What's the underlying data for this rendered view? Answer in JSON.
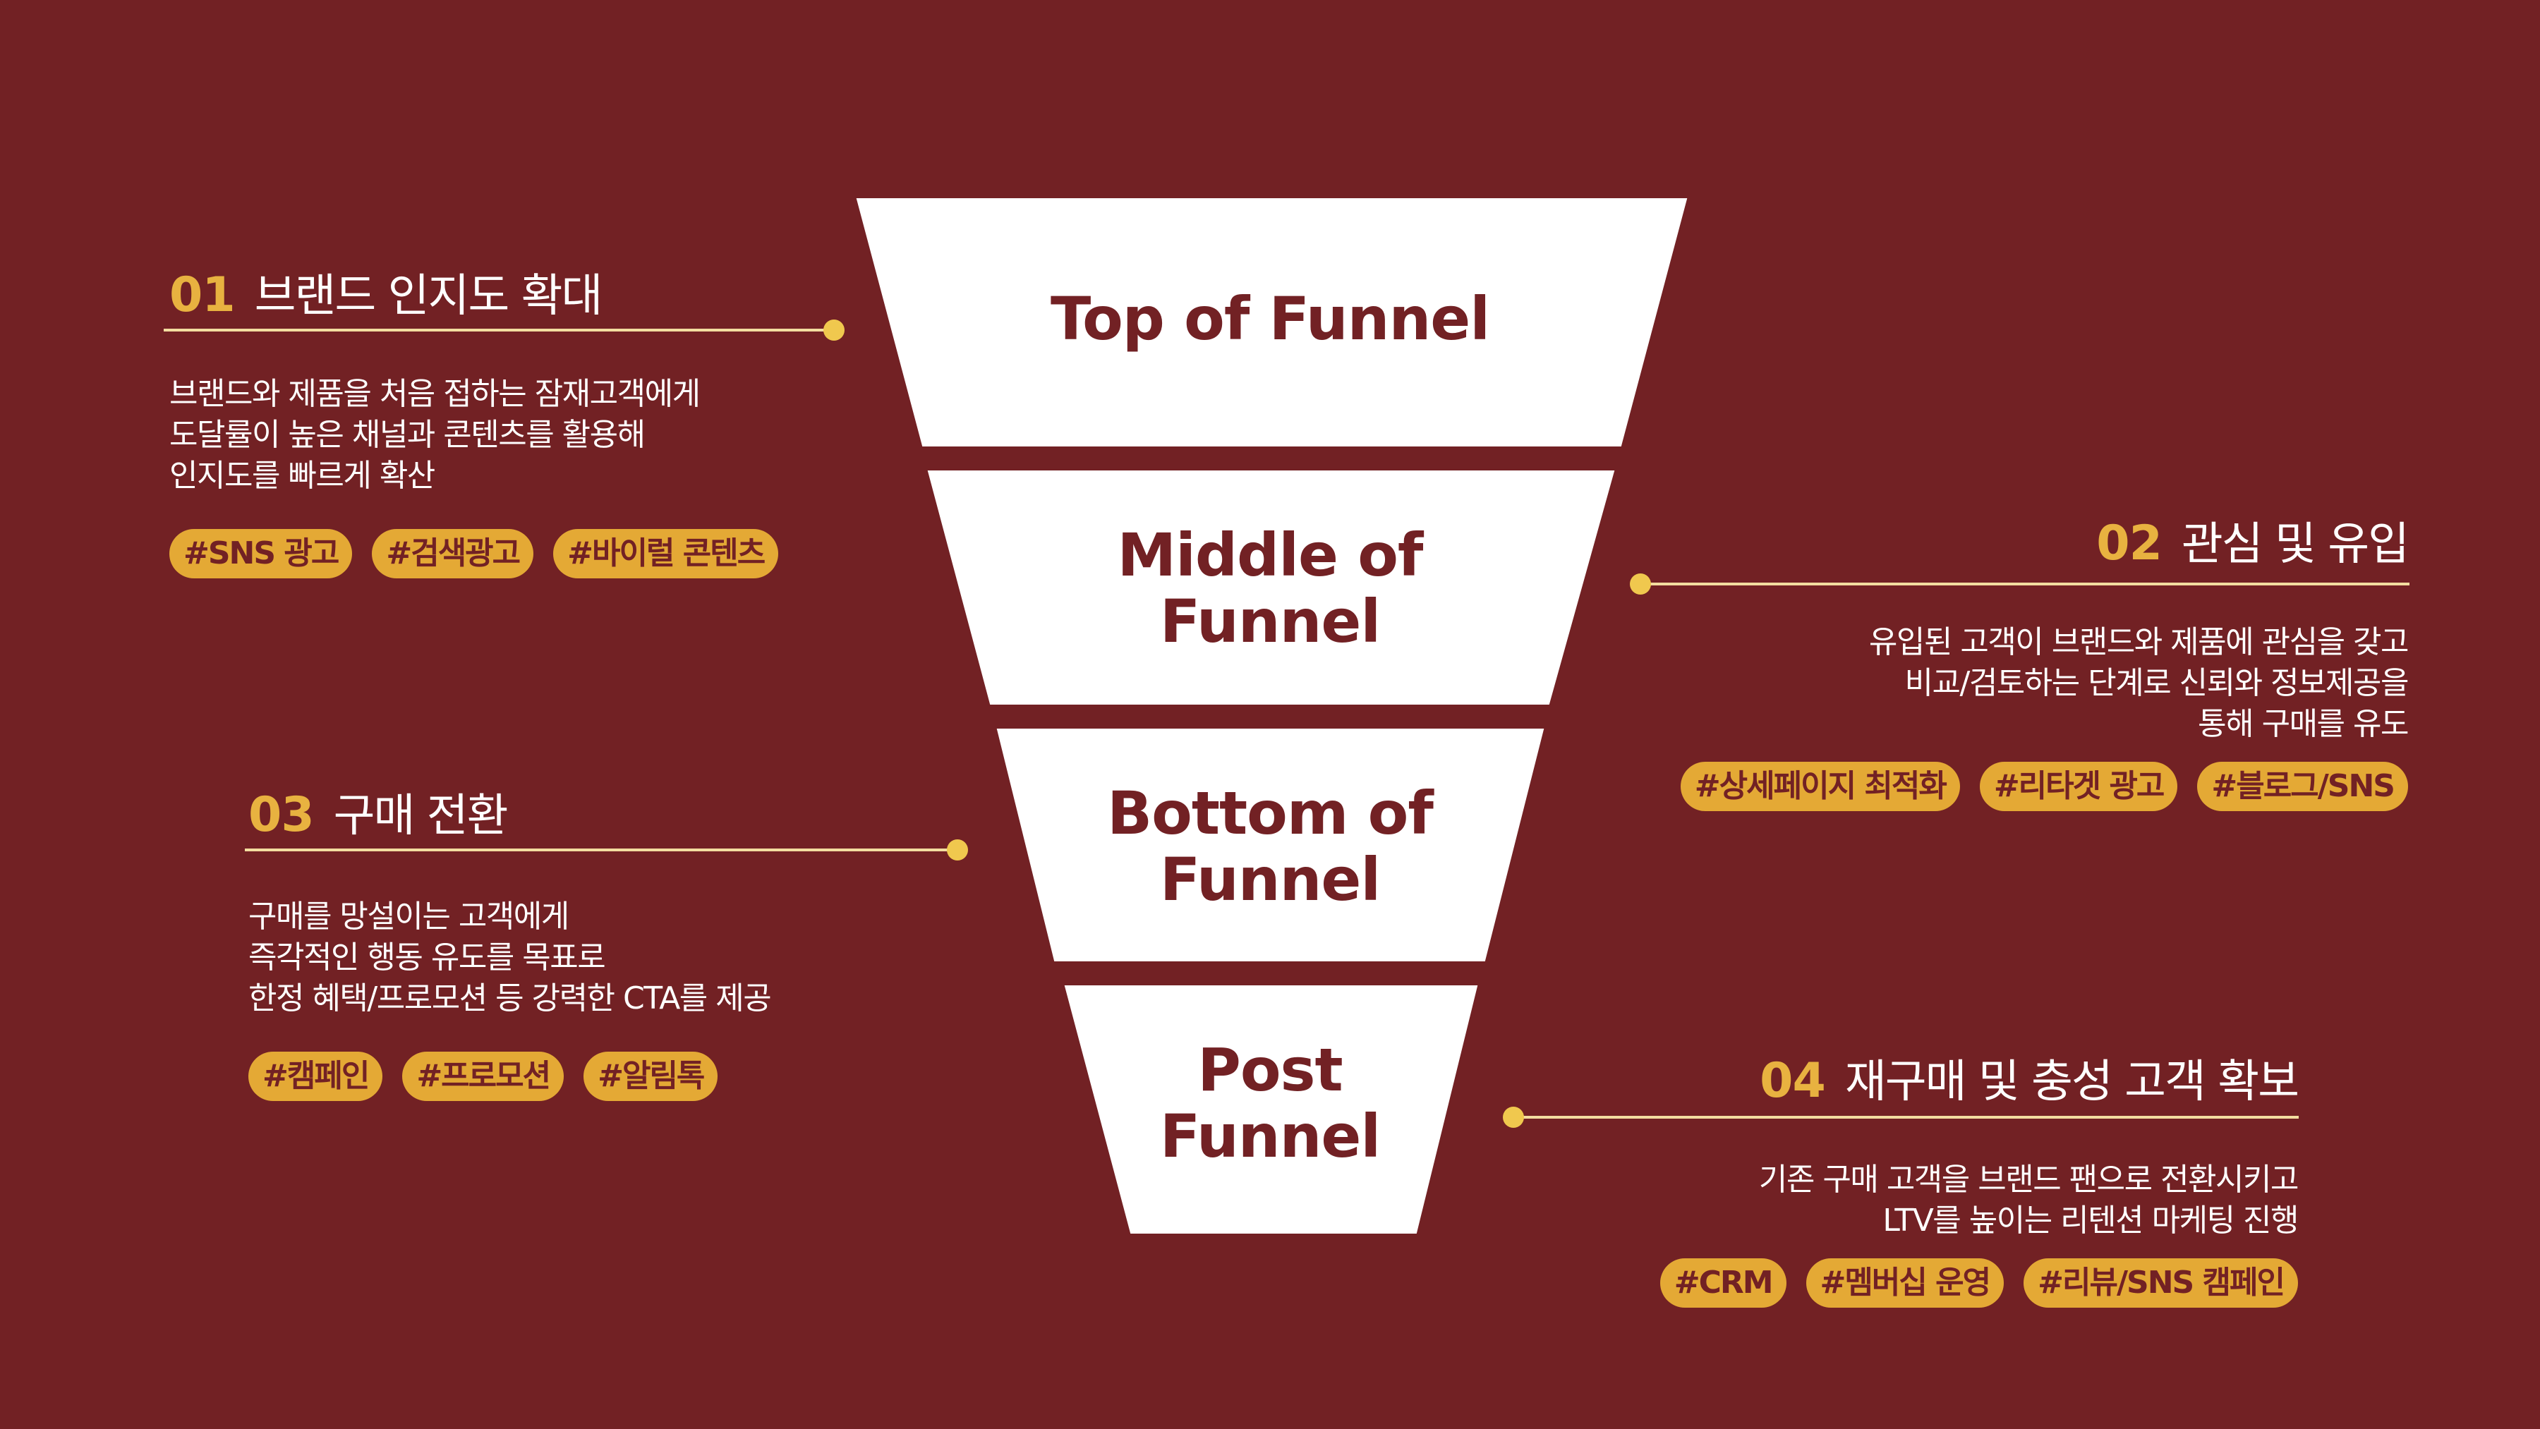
{
  "funnel": {
    "stages": [
      {
        "label": "Top of Funnel"
      },
      {
        "label": "Middle of\nFunnel"
      },
      {
        "label": "Bottom of\nFunnel"
      },
      {
        "label": "Post\nFunnel"
      }
    ]
  },
  "sections": [
    {
      "number": "01",
      "title": "브랜드 인지도 확대",
      "description": [
        "브랜드와 제품을 처음 접하는 잠재고객에게",
        "도달률이 높은 채널과 콘텐츠를 활용해",
        "인지도를 빠르게 확산"
      ],
      "tags": [
        "#SNS 광고",
        "#검색광고",
        "#바이럴 콘텐츠"
      ]
    },
    {
      "number": "02",
      "title": "관심 및 유입",
      "description": [
        "유입된 고객이 브랜드와 제품에 관심을 갖고",
        "비교/검토하는 단계로 신뢰와 정보제공을",
        "통해 구매를 유도"
      ],
      "tags": [
        "#상세페이지 최적화",
        "#리타겟 광고",
        "#블로그/SNS"
      ]
    },
    {
      "number": "03",
      "title": "구매 전환",
      "description": [
        "구매를 망설이는 고객에게",
        "즉각적인 행동 유도를 목표로",
        "한정 혜택/프로모션 등 강력한 CTA를 제공"
      ],
      "tags": [
        "#캠페인",
        "#프로모션",
        "#알림톡"
      ]
    },
    {
      "number": "04",
      "title": "재구매 및 충성 고객 확보",
      "description": [
        "기존 구매 고객을 브랜드 팬으로 전환시키고",
        "LTV를 높이는 리텐션 마케팅 진행"
      ],
      "tags": [
        "#CRM",
        "#멤버십 운영",
        "#리뷰/SNS 캠페인"
      ]
    }
  ],
  "colors": {
    "background": "#722124",
    "accent": "#E4A935",
    "funnel_fill": "#FFFFFF",
    "text_light": "#FFFFFF"
  }
}
